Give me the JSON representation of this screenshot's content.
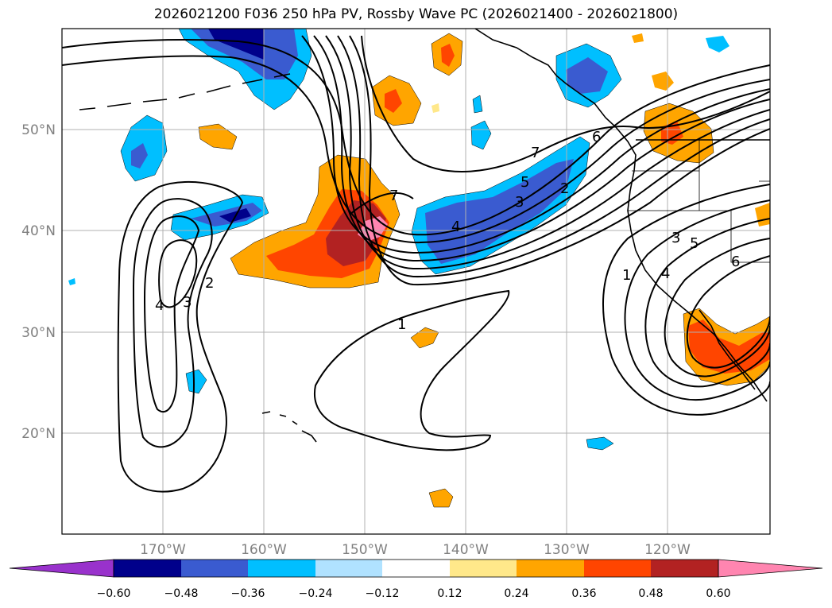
{
  "title": "2026021200 F036 250 hPa PV, Rossby Wave PC (2026021400 - 2026021800)",
  "map": {
    "lon_range": [
      -180,
      -110
    ],
    "lat_range": [
      10,
      60
    ],
    "lat_ticks": [
      {
        "lat": 20,
        "label": "20°N"
      },
      {
        "lat": 30,
        "label": "30°N"
      },
      {
        "lat": 40,
        "label": "40°N"
      },
      {
        "lat": 50,
        "label": "50°N"
      }
    ],
    "lon_ticks": [
      {
        "lon": -170,
        "label": "170°W"
      },
      {
        "lon": -160,
        "label": "160°W"
      },
      {
        "lon": -150,
        "label": "150°W"
      },
      {
        "lon": -140,
        "label": "140°W"
      },
      {
        "lon": -130,
        "label": "130°W"
      },
      {
        "lon": -120,
        "label": "120°W"
      }
    ],
    "gridlines": true,
    "contour_labels": [
      "1",
      "2",
      "3",
      "4",
      "5",
      "6",
      "7"
    ]
  },
  "colorbar": {
    "levels": [
      "−0.60",
      "−0.48",
      "−0.36",
      "−0.24",
      "−0.12",
      "0.12",
      "0.24",
      "0.36",
      "0.48",
      "0.60"
    ],
    "colors": [
      "#9932cc",
      "#00008b",
      "#3a5bd0",
      "#00bfff",
      "#b0e2ff",
      "#ffffff",
      "#ffe88a",
      "#ffa500",
      "#ff4500",
      "#b22222",
      "#ff85b0"
    ],
    "extend": "both"
  }
}
